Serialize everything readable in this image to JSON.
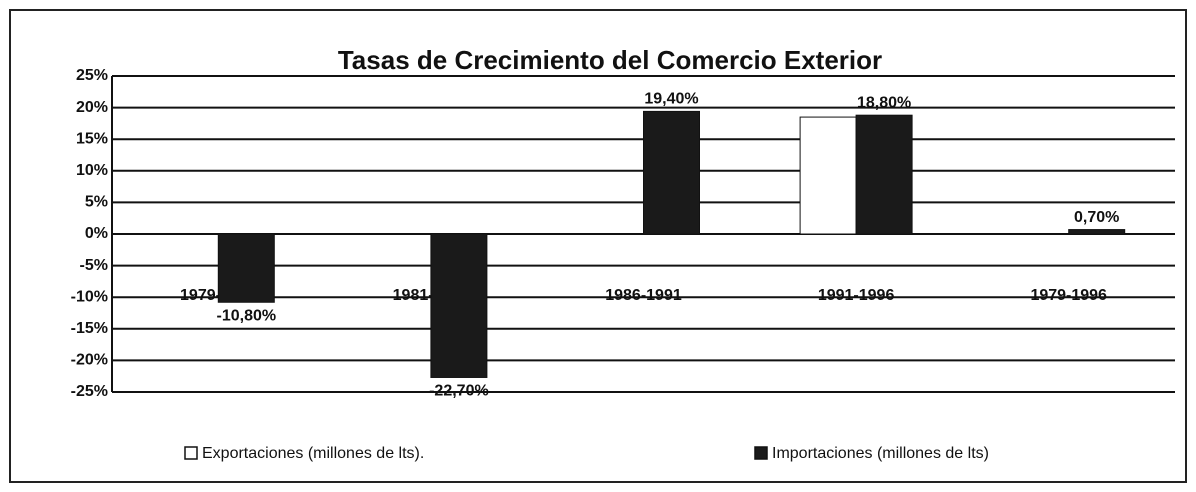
{
  "chart_data": {
    "type": "bar",
    "title": "Tasas de Crecimiento del Comercio Exterior",
    "categories": [
      "1979-1981",
      "1981-1986",
      "1986-1991",
      "1991-1996",
      "1979-1996"
    ],
    "series": [
      {
        "name": "Exportaciones (millones de lts).",
        "color": "#ffffff",
        "values": [
          null,
          null,
          null,
          18.5,
          null
        ],
        "value_labels": [
          null,
          null,
          null,
          null,
          null
        ]
      },
      {
        "name": "Importaciones (millones de lts)",
        "color": "#1a1a1a",
        "values": [
          -10.8,
          -22.7,
          19.4,
          18.8,
          0.7
        ],
        "value_labels": [
          "-10,80%",
          "-22,70%",
          "19,40%",
          "18,80%",
          "0,70%"
        ]
      }
    ],
    "ylim": [
      -25,
      25
    ],
    "yticks": [
      {
        "value": -25,
        "label": "-25%"
      },
      {
        "value": -20,
        "label": "-20%"
      },
      {
        "value": -15,
        "label": "-15%"
      },
      {
        "value": -10,
        "label": "-10%"
      },
      {
        "value": -5,
        "label": "-5%"
      },
      {
        "value": 0,
        "label": "0%"
      },
      {
        "value": 5,
        "label": "5%"
      },
      {
        "value": 10,
        "label": "10%"
      },
      {
        "value": 15,
        "label": "15%"
      },
      {
        "value": 20,
        "label": "20%"
      },
      {
        "value": 25,
        "label": "25%"
      }
    ],
    "grid": true
  }
}
